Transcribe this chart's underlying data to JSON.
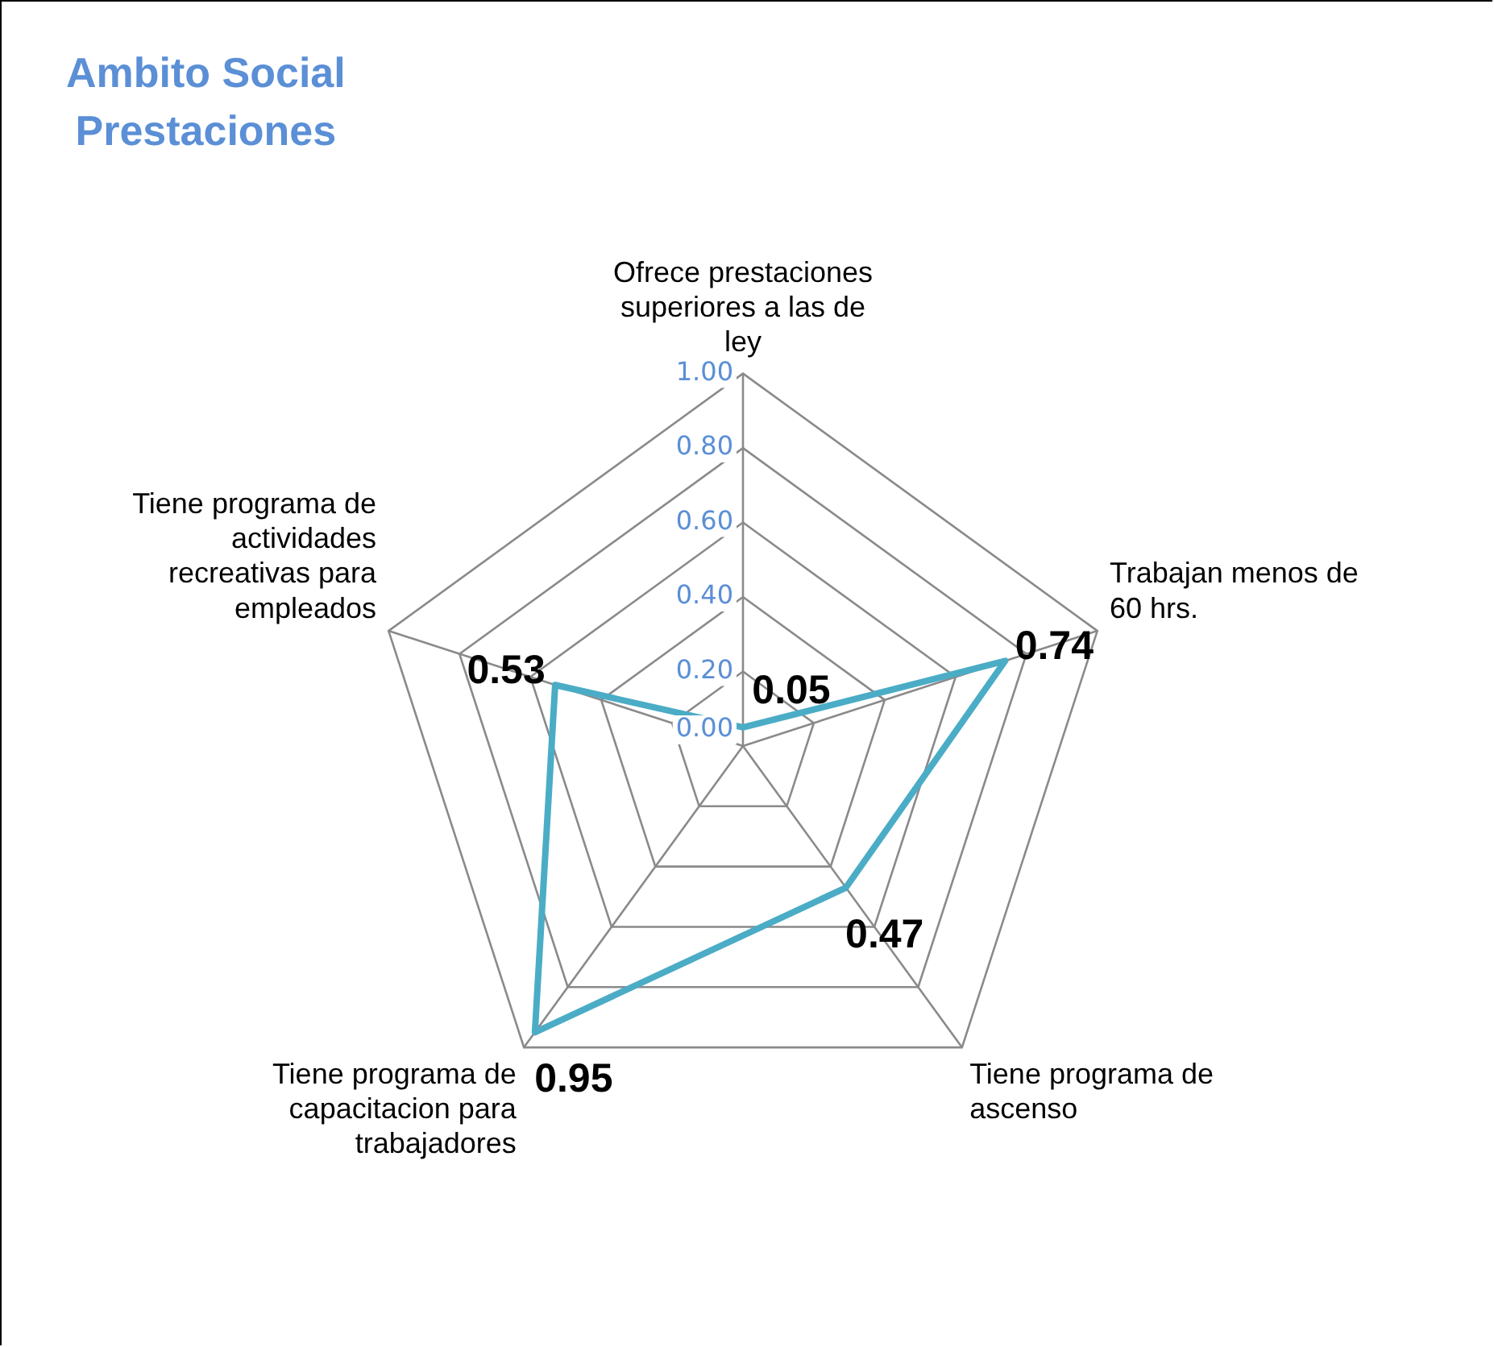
{
  "chart_data": {
    "type": "radar",
    "title": "Ambito Social\nPrestaciones",
    "categories": [
      "Ofrece prestaciones superiores a las de ley",
      "Trabajan menos de 60 hrs.",
      "Tiene programa de ascenso",
      "Tiene programa de capacitacion para trabajadores",
      "Tiene programa de actividades recreativas para empleados"
    ],
    "series": [
      {
        "color": "#4bacc6",
        "values": [
          0.05,
          0.74,
          0.47,
          0.95,
          0.53
        ]
      }
    ],
    "ylim": [
      0,
      1
    ],
    "yticks": [
      {
        "value": 0,
        "label": "0.00"
      },
      {
        "value": 0.2,
        "label": "0.20"
      },
      {
        "value": 0.4,
        "label": "0.40"
      },
      {
        "value": 0.6,
        "label": "0.60"
      },
      {
        "value": 0.8,
        "label": "0.80"
      },
      {
        "value": 1,
        "label": "1.00"
      }
    ],
    "grid": true,
    "legend": false,
    "marker": "none",
    "data_labels": true
  }
}
